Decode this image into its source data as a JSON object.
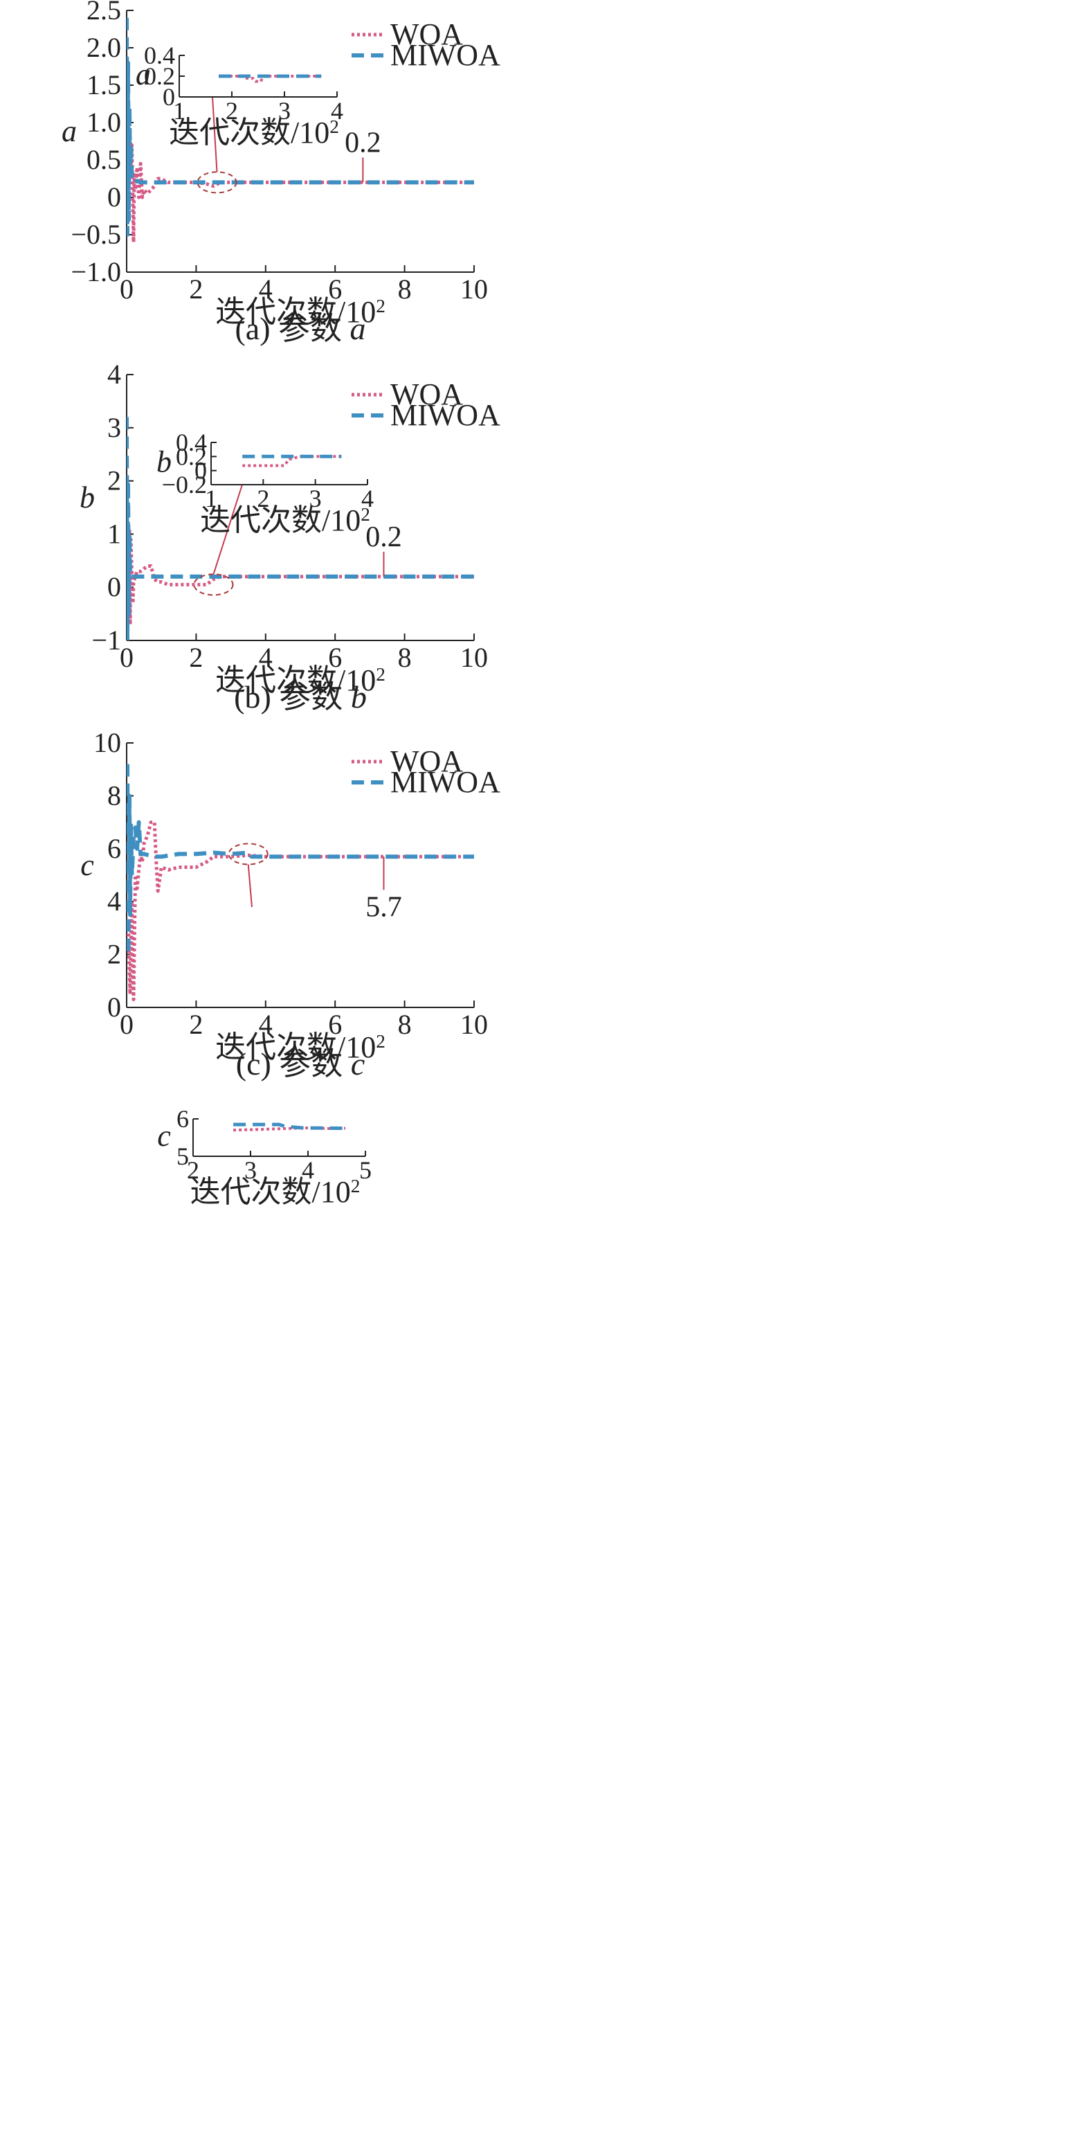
{
  "colors": {
    "woa": "#d65a86",
    "miwoa": "#3f8fc2",
    "axis": "#222222",
    "annot": "#c43c50",
    "ellipse": "#a83a3a"
  },
  "legend_labels": {
    "woa": "WOA",
    "miwoa": "MIWOA"
  },
  "chart_data": [
    {
      "type": "line",
      "panel": "a",
      "caption": "(a) 参数 a",
      "xlabel": "迭代次数/10²",
      "ylabel": "a",
      "xlim": [
        0,
        10
      ],
      "ylim": [
        -1.0,
        2.5
      ],
      "xticks": [
        "0",
        "2",
        "4",
        "6",
        "8",
        "10"
      ],
      "yticks": [
        "−1.0",
        "−0.5",
        "0",
        "0.5",
        "1.0",
        "1.5",
        "2.0",
        "2.5"
      ],
      "annotation": {
        "text": "0.2",
        "x": 6.8,
        "y": 0.2
      },
      "highlight": {
        "x": 2.6,
        "y": 0.2
      },
      "series": [
        {
          "name": "WOA",
          "x": [
            0,
            0.02,
            0.05,
            0.08,
            0.1,
            0.12,
            0.15,
            0.18,
            0.2,
            0.22,
            0.25,
            0.3,
            0.35,
            0.4,
            0.45,
            0.5,
            0.6,
            0.7,
            0.8,
            0.9,
            1.0,
            1.1,
            1.2,
            1.4,
            1.7,
            2.0,
            2.3,
            2.5,
            2.7,
            3.0,
            4.0,
            6.0,
            8.0,
            10.0
          ],
          "y": [
            0.85,
            0.5,
            0.75,
            0.4,
            0.8,
            0.3,
            0.7,
            -0.1,
            -0.6,
            0.3,
            0.1,
            0.4,
            0.0,
            0.45,
            0.0,
            0.1,
            0.05,
            0.1,
            0.15,
            0.25,
            0.25,
            0.22,
            0.2,
            0.2,
            0.2,
            0.2,
            0.18,
            0.15,
            0.2,
            0.2,
            0.2,
            0.2,
            0.2,
            0.2
          ]
        },
        {
          "name": "MIWOA",
          "x": [
            0,
            0.02,
            0.04,
            0.06,
            0.08,
            0.1,
            0.12,
            0.15,
            0.2,
            0.3,
            0.4,
            0.6,
            1.0,
            1.5,
            2.0,
            2.5,
            3.0,
            4.0,
            6.0,
            8.0,
            10.0
          ],
          "y": [
            2.4,
            -0.5,
            1.8,
            -0.3,
            1.2,
            0.3,
            0.7,
            0.25,
            0.2,
            0.22,
            0.2,
            0.2,
            0.2,
            0.2,
            0.2,
            0.2,
            0.2,
            0.2,
            0.2,
            0.2,
            0.2
          ]
        }
      ],
      "inset": {
        "xlabel": "迭代次数/10²",
        "ylabel": "a",
        "xlim": [
          1,
          4
        ],
        "ylim": [
          0,
          0.4
        ],
        "xticks": [
          "1",
          "2",
          "3",
          "4"
        ],
        "yticks": [
          "0",
          "0.2",
          "0.4"
        ],
        "series": [
          {
            "name": "WOA",
            "x": [
              1.75,
              2.2,
              2.25,
              2.4,
              2.45,
              2.55,
              2.6,
              2.9,
              3.7
            ],
            "y": [
              0.2,
              0.2,
              0.18,
              0.18,
              0.15,
              0.15,
              0.2,
              0.2,
              0.2
            ]
          },
          {
            "name": "MIWOA",
            "x": [
              1.75,
              3.7
            ],
            "y": [
              0.2,
              0.2
            ]
          }
        ]
      }
    },
    {
      "type": "line",
      "panel": "b",
      "caption": "(b) 参数 b",
      "xlabel": "迭代次数/10²",
      "ylabel": "b",
      "xlim": [
        0,
        10
      ],
      "ylim": [
        -1,
        4
      ],
      "xticks": [
        "0",
        "2",
        "4",
        "6",
        "8",
        "10"
      ],
      "yticks": [
        "−1",
        "0",
        "1",
        "2",
        "3",
        "4"
      ],
      "annotation": {
        "text": "0.2",
        "x": 7.4,
        "y": 0.2
      },
      "highlight": {
        "x": 2.5,
        "y": 0.05
      },
      "series": [
        {
          "name": "WOA",
          "x": [
            0,
            0.05,
            0.08,
            0.1,
            0.12,
            0.15,
            0.18,
            0.2,
            0.25,
            0.3,
            0.4,
            0.5,
            0.6,
            0.7,
            0.8,
            0.9,
            1.0,
            1.2,
            1.5,
            2.0,
            2.3,
            2.4,
            2.5,
            2.7,
            3.0,
            4.0,
            6.0,
            8.0,
            10.0
          ],
          "y": [
            1.3,
            -0.5,
            1.1,
            -0.7,
            0.9,
            0.3,
            -0.3,
            0.1,
            0.2,
            0.3,
            0.3,
            0.35,
            0.4,
            0.4,
            0.15,
            0.1,
            0.1,
            0.05,
            0.05,
            0.05,
            0.05,
            0.1,
            0.15,
            0.2,
            0.2,
            0.2,
            0.2,
            0.2,
            0.2
          ]
        },
        {
          "name": "MIWOA",
          "x": [
            0,
            0.02,
            0.04,
            0.06,
            0.08,
            0.1,
            0.15,
            0.3,
            0.5,
            1.0,
            2.0,
            3.0,
            4.0,
            6.0,
            8.0,
            10.0
          ],
          "y": [
            3.2,
            -1.0,
            2.0,
            -0.5,
            1.0,
            0.2,
            0.2,
            0.2,
            0.2,
            0.2,
            0.2,
            0.2,
            0.2,
            0.2,
            0.2,
            0.2
          ]
        }
      ],
      "inset": {
        "xlabel": "迭代次数/10²",
        "ylabel": "b",
        "xlim": [
          1,
          4
        ],
        "ylim": [
          -0.2,
          0.4
        ],
        "xticks": [
          "1",
          "2",
          "3",
          "4"
        ],
        "yticks": [
          "−0.2",
          "0",
          "0.2",
          "0.4"
        ],
        "series": [
          {
            "name": "WOA",
            "x": [
              1.6,
              2.4,
              2.5,
              2.7,
              3.5
            ],
            "y": [
              0.07,
              0.07,
              0.16,
              0.2,
              0.2
            ]
          },
          {
            "name": "MIWOA",
            "x": [
              1.6,
              3.5
            ],
            "y": [
              0.2,
              0.2
            ]
          }
        ]
      }
    },
    {
      "type": "line",
      "panel": "c",
      "caption": "(c) 参数 c",
      "xlabel": "迭代次数/10²",
      "ylabel": "c",
      "xlim": [
        0,
        10
      ],
      "ylim": [
        0,
        10
      ],
      "xticks": [
        "0",
        "2",
        "4",
        "6",
        "8",
        "10"
      ],
      "yticks": [
        "0",
        "2",
        "4",
        "6",
        "8",
        "10"
      ],
      "annotation": {
        "text": "5.7",
        "x": 7.4,
        "y": 5.7
      },
      "highlight": {
        "x": 3.5,
        "y": 5.8
      },
      "series": [
        {
          "name": "WOA",
          "x": [
            0.05,
            0.1,
            0.15,
            0.2,
            0.25,
            0.3,
            0.35,
            0.4,
            0.45,
            0.5,
            0.6,
            0.7,
            0.8,
            0.85,
            0.9,
            1.0,
            1.2,
            1.5,
            2.0,
            2.3,
            2.5,
            2.7,
            3.0,
            3.5,
            4.0,
            6.0,
            8.0,
            10.0
          ],
          "y": [
            3.0,
            0.5,
            4.0,
            0.3,
            5.0,
            4.5,
            5.2,
            5.8,
            5.5,
            6.2,
            6.5,
            7.0,
            7.0,
            5.5,
            4.4,
            5.3,
            5.2,
            5.3,
            5.3,
            5.5,
            5.7,
            5.7,
            5.7,
            5.75,
            5.7,
            5.7,
            5.7,
            5.7
          ]
        },
        {
          "name": "MIWOA",
          "x": [
            0.02,
            0.05,
            0.08,
            0.1,
            0.12,
            0.15,
            0.2,
            0.25,
            0.3,
            0.35,
            0.4,
            0.5,
            0.8,
            1.0,
            1.5,
            2.0,
            2.5,
            3.0,
            3.5,
            3.6,
            4.0,
            6.0,
            8.0,
            10.0
          ],
          "y": [
            9.2,
            2.0,
            8.0,
            3.5,
            7.0,
            5.0,
            6.5,
            6.8,
            6.0,
            7.0,
            5.8,
            5.8,
            5.7,
            5.7,
            5.8,
            5.8,
            5.85,
            5.8,
            5.85,
            5.7,
            5.7,
            5.7,
            5.7,
            5.7
          ]
        }
      ],
      "inset": {
        "xlabel": "迭代次数/10²",
        "ylabel": "c",
        "xlim": [
          2,
          5
        ],
        "ylim": [
          5,
          6
        ],
        "xticks": [
          "2",
          "3",
          "4",
          "5"
        ],
        "yticks": [
          "5",
          "6"
        ],
        "series": [
          {
            "name": "WOA",
            "x": [
              2.7,
              3.2,
              3.6,
              3.8,
              4.0,
              4.2,
              4.4,
              4.65
            ],
            "y": [
              5.7,
              5.72,
              5.74,
              5.75,
              5.76,
              5.75,
              5.74,
              5.75
            ]
          },
          {
            "name": "MIWOA",
            "x": [
              2.7,
              3.5,
              3.6,
              3.9,
              4.65
            ],
            "y": [
              5.85,
              5.85,
              5.8,
              5.76,
              5.75
            ]
          }
        ]
      }
    }
  ]
}
